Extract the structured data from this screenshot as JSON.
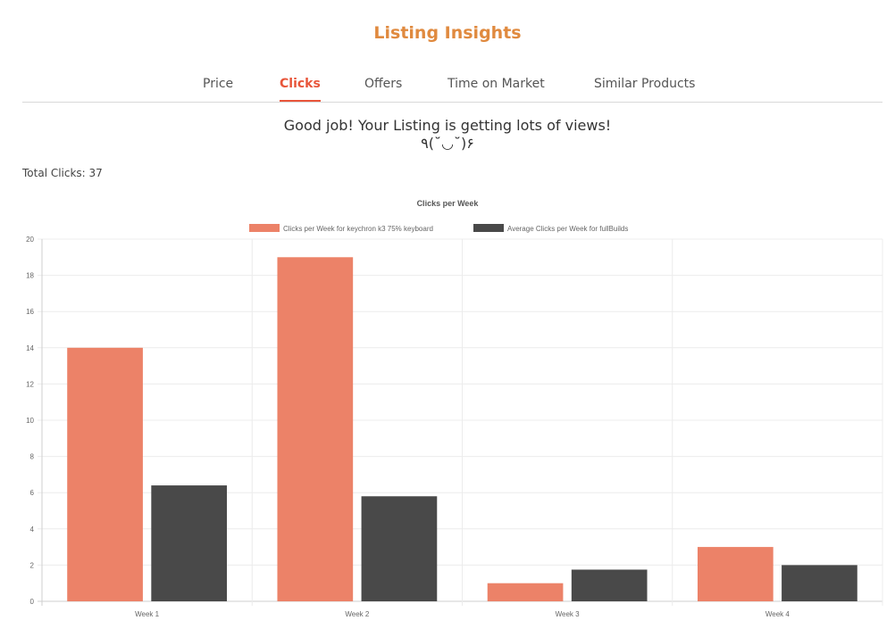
{
  "header": {
    "title": "Listing Insights"
  },
  "tabs": [
    {
      "label": "Price",
      "active": false
    },
    {
      "label": "Clicks",
      "active": true
    },
    {
      "label": "Offers",
      "active": false
    },
    {
      "label": "Time on Market",
      "active": false
    },
    {
      "label": "Similar Products",
      "active": false
    }
  ],
  "message": {
    "line1": "Good job! Your Listing is getting lots of views!",
    "line2": "٩(˘◡˘)۶"
  },
  "summary": {
    "total_clicks": "Total Clicks: 37"
  },
  "colors": {
    "series_1": "#ec8268",
    "series_2": "#494949",
    "accent": "#e8553a",
    "title": "#e08a3f"
  },
  "chart_data": {
    "type": "bar",
    "title": "Clicks per Week",
    "categories": [
      "Week 1",
      "Week 2",
      "Week 3",
      "Week 4"
    ],
    "series": [
      {
        "name": "Clicks per Week for keychron k3 75% keyboard",
        "values": [
          14,
          19,
          1,
          3
        ]
      },
      {
        "name": "Average Clicks per Week for fullBuilds",
        "values": [
          6.4,
          5.8,
          1.75,
          2.0
        ]
      }
    ],
    "ylim": [
      0,
      20
    ],
    "yticks": [
      0,
      2,
      4,
      6,
      8,
      10,
      12,
      14,
      16,
      18,
      20
    ],
    "grid": true,
    "legend": "top"
  }
}
